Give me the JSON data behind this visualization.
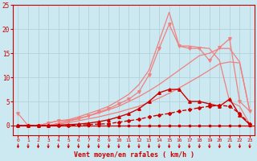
{
  "background_color": "#cce8f0",
  "grid_color": "#b0ccd4",
  "xlabel": "Vent moyen/en rafales ( km/h )",
  "xlabel_color": "#cc0000",
  "tick_color": "#cc0000",
  "x_ticks": [
    0,
    1,
    2,
    3,
    4,
    5,
    6,
    7,
    8,
    9,
    10,
    11,
    12,
    13,
    14,
    15,
    16,
    17,
    18,
    19,
    20,
    21,
    22,
    23
  ],
  "ylim": [
    -2,
    25
  ],
  "xlim": [
    -0.5,
    23.5
  ],
  "yticks": [
    0,
    5,
    10,
    15,
    20,
    25
  ],
  "series": [
    {
      "x": [
        0,
        1,
        2,
        3,
        4,
        5,
        6,
        7,
        8,
        9,
        10,
        11,
        12,
        13,
        14,
        15,
        16,
        17,
        18,
        19,
        20,
        21,
        22,
        23
      ],
      "y": [
        0,
        0,
        0,
        0,
        0,
        0,
        0,
        0,
        0,
        0,
        0,
        0,
        0,
        0,
        0,
        0,
        0,
        0,
        0,
        0,
        0,
        0,
        0,
        0
      ],
      "color": "#cc0000",
      "marker": "s",
      "markersize": 2.0,
      "linewidth": 0.8,
      "linestyle": "-",
      "zorder": 4
    },
    {
      "x": [
        0,
        1,
        2,
        3,
        4,
        5,
        6,
        7,
        8,
        9,
        10,
        11,
        12,
        13,
        14,
        15,
        16,
        17,
        18,
        19,
        20,
        21,
        22,
        23
      ],
      "y": [
        0,
        0,
        0,
        0,
        0,
        0,
        0.1,
        0.2,
        0.3,
        0.4,
        0.7,
        1.0,
        1.3,
        1.8,
        2.2,
        2.5,
        3.0,
        3.3,
        3.7,
        4.0,
        4.2,
        4.0,
        2.5,
        0.3
      ],
      "color": "#cc0000",
      "marker": "D",
      "markersize": 2.0,
      "linewidth": 1.0,
      "linestyle": "--",
      "zorder": 4
    },
    {
      "x": [
        0,
        1,
        2,
        3,
        4,
        5,
        6,
        7,
        8,
        9,
        10,
        11,
        12,
        13,
        14,
        15,
        16,
        17,
        18,
        19,
        20,
        21,
        22,
        23
      ],
      "y": [
        0,
        0,
        0,
        0,
        0.1,
        0.2,
        0.3,
        0.5,
        0.8,
        1.2,
        1.8,
        2.5,
        3.5,
        5.0,
        6.8,
        7.5,
        7.5,
        5.0,
        5.0,
        4.5,
        4.0,
        5.5,
        2.2,
        0.2
      ],
      "color": "#cc0000",
      "marker": "^",
      "markersize": 2.5,
      "linewidth": 1.0,
      "linestyle": "-",
      "zorder": 4
    },
    {
      "x": [
        0,
        1,
        2,
        3,
        4,
        5,
        6,
        7,
        8,
        9,
        10,
        11,
        12,
        13,
        14,
        15,
        16,
        17,
        18,
        19,
        20,
        21,
        22,
        23
      ],
      "y": [
        0,
        0,
        0,
        0,
        0.3,
        0.6,
        1.0,
        1.4,
        1.8,
        2.3,
        2.8,
        3.4,
        4.0,
        4.8,
        5.7,
        6.7,
        7.8,
        9.0,
        10.2,
        11.5,
        12.8,
        13.2,
        13.0,
        3.0
      ],
      "color": "#f08080",
      "marker": null,
      "markersize": 0,
      "linewidth": 0.9,
      "linestyle": "-",
      "zorder": 2
    },
    {
      "x": [
        0,
        1,
        2,
        3,
        4,
        5,
        6,
        7,
        8,
        9,
        10,
        11,
        12,
        13,
        14,
        15,
        16,
        17,
        18,
        19,
        20,
        21,
        22,
        23
      ],
      "y": [
        0,
        0,
        0,
        0,
        0.5,
        0.9,
        1.4,
        2.0,
        2.6,
        3.3,
        4.0,
        5.0,
        6.0,
        7.2,
        8.5,
        10.0,
        11.5,
        13.0,
        14.5,
        15.0,
        16.0,
        16.0,
        13.2,
        3.0
      ],
      "color": "#f08080",
      "marker": null,
      "markersize": 0,
      "linewidth": 0.9,
      "linestyle": "-",
      "zorder": 2
    },
    {
      "x": [
        0,
        1,
        2,
        3,
        4,
        5,
        6,
        7,
        8,
        9,
        10,
        11,
        12,
        13,
        14,
        15,
        16,
        17,
        18,
        19,
        20,
        21,
        22,
        23
      ],
      "y": [
        2.5,
        0,
        0,
        0.5,
        1.0,
        1.0,
        1.5,
        2.0,
        2.8,
        3.5,
        4.5,
        5.5,
        7.0,
        10.5,
        16.0,
        21.0,
        16.5,
        16.0,
        16.0,
        13.5,
        16.2,
        18.0,
        5.0,
        3.0
      ],
      "color": "#f08080",
      "marker": "v",
      "markersize": 2.5,
      "linewidth": 0.9,
      "linestyle": "-",
      "zorder": 3
    },
    {
      "x": [
        0,
        1,
        2,
        3,
        4,
        5,
        6,
        7,
        8,
        9,
        10,
        11,
        12,
        13,
        14,
        15,
        16,
        17,
        18,
        19,
        20,
        21,
        22,
        23
      ],
      "y": [
        0,
        0,
        0,
        0.5,
        1.0,
        1.2,
        1.8,
        2.5,
        3.2,
        4.0,
        5.2,
        6.5,
        8.5,
        11.5,
        17.5,
        23.5,
        16.5,
        16.5,
        16.2,
        16.0,
        13.5,
        5.0,
        4.0,
        0.3
      ],
      "color": "#f08080",
      "marker": null,
      "markersize": 0,
      "linewidth": 0.9,
      "linestyle": "-",
      "zorder": 3
    }
  ],
  "arrow_color": "#cc0000",
  "axis_linecolor": "#cc0000"
}
